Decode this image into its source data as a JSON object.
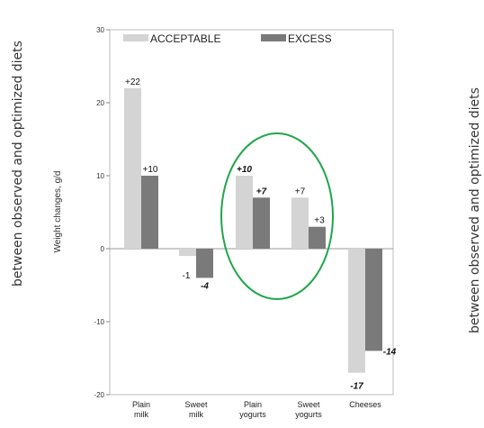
{
  "side_text": {
    "left": "between observed and optimized diets",
    "right": "between observed and optimized diets"
  },
  "colors": {
    "acceptable": "#d4d4d4",
    "excess": "#7a7a7a",
    "highlight_ellipse": "#1fa64a"
  },
  "chart_data": {
    "type": "bar",
    "categories": [
      [
        "Plain",
        "milk"
      ],
      [
        "Sweet",
        "milk"
      ],
      [
        "Plain",
        "yogurts"
      ],
      [
        "Sweet",
        "yogurts"
      ],
      [
        "Cheeses"
      ]
    ],
    "series": [
      {
        "name": "ACCEPTABLE",
        "values": [
          22,
          -1,
          10,
          7,
          -17
        ],
        "labels": [
          "+22",
          "-1",
          "+10",
          "+7",
          "-17"
        ]
      },
      {
        "name": "EXCESS",
        "values": [
          10,
          -4,
          7,
          3,
          -14
        ],
        "labels": [
          "+10",
          "-4",
          "+7",
          "+3",
          "-14"
        ]
      }
    ],
    "ylabel": "Weight changes, g/d",
    "ylim": [
      -20,
      30
    ],
    "yticks": [
      30,
      20,
      10,
      0,
      -10,
      -20
    ],
    "legend_position": "top",
    "annotation": "ellipse highlighting Plain yogurts and Sweet yogurts"
  }
}
